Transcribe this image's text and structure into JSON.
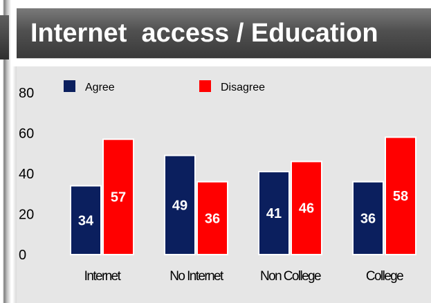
{
  "title": "Internet  access / Education",
  "chart_data": {
    "type": "bar",
    "title": "Internet  access / Education",
    "categories": [
      "Internet",
      "No Internet",
      "Non College",
      "College"
    ],
    "series": [
      {
        "name": "Agree",
        "values": [
          34,
          49,
          41,
          36
        ],
        "color": "#0b1f5e"
      },
      {
        "name": "Disagree",
        "values": [
          57,
          36,
          46,
          58
        ],
        "color": "#ff0000"
      }
    ],
    "yticks": [
      "0",
      "20",
      "40",
      "60",
      "80"
    ],
    "ylim": [
      0,
      80
    ],
    "grid": false,
    "legend": "top-left",
    "data_labels": true
  }
}
